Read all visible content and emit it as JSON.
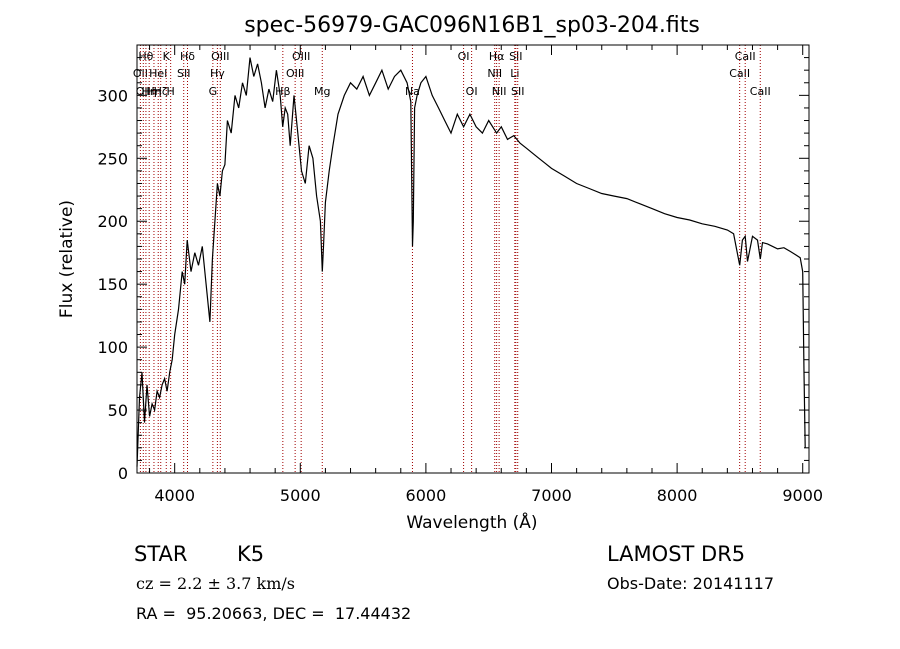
{
  "chart_data": {
    "type": "line",
    "title": "spec-56979-GAC096N16B1_sp03-204.fits",
    "xlabel": "Wavelength (Å)",
    "ylabel": "Flux (relative)",
    "xlim": [
      3700,
      9050
    ],
    "ylim": [
      0,
      340
    ],
    "x_ticks": [
      4000,
      5000,
      6000,
      7000,
      8000,
      9000
    ],
    "y_ticks": [
      0,
      50,
      100,
      150,
      200,
      250,
      300
    ],
    "grid": false,
    "line_color": "#000000",
    "marker_color": "#a00000",
    "series": [
      {
        "x": [
          3700,
          3720,
          3740,
          3760,
          3780,
          3800,
          3820,
          3840,
          3860,
          3880,
          3900,
          3920,
          3940,
          3960,
          3980,
          4000,
          4030,
          4060,
          4080,
          4100,
          4130,
          4160,
          4190,
          4220,
          4250,
          4280,
          4300,
          4320,
          4340,
          4360,
          4380,
          4400,
          4420,
          4450,
          4480,
          4510,
          4540,
          4570,
          4600,
          4630,
          4660,
          4690,
          4720,
          4750,
          4780,
          4810,
          4840,
          4860,
          4880,
          4900,
          4920,
          4950,
          4980,
          5010,
          5040,
          5070,
          5100,
          5130,
          5160,
          5175,
          5185,
          5200,
          5230,
          5260,
          5300,
          5350,
          5400,
          5450,
          5500,
          5550,
          5600,
          5650,
          5700,
          5750,
          5800,
          5850,
          5880,
          5893,
          5900,
          5910,
          5930,
          5960,
          6000,
          6050,
          6100,
          6150,
          6200,
          6250,
          6300,
          6350,
          6400,
          6450,
          6500,
          6563,
          6600,
          6650,
          6700,
          6750,
          6800,
          6850,
          6900,
          6950,
          7000,
          7100,
          7200,
          7300,
          7400,
          7500,
          7600,
          7700,
          7800,
          7900,
          8000,
          8100,
          8200,
          8300,
          8400,
          8450,
          8498,
          8520,
          8542,
          8560,
          8600,
          8640,
          8662,
          8680,
          8720,
          8760,
          8800,
          8850,
          8900,
          8950,
          8980,
          9000,
          9010,
          9020
        ],
        "y": [
          5,
          60,
          80,
          40,
          70,
          45,
          55,
          50,
          65,
          60,
          70,
          75,
          65,
          80,
          90,
          110,
          130,
          160,
          150,
          185,
          160,
          175,
          165,
          180,
          150,
          120,
          170,
          200,
          230,
          220,
          240,
          245,
          280,
          270,
          300,
          290,
          310,
          300,
          330,
          315,
          325,
          310,
          290,
          305,
          295,
          320,
          300,
          275,
          290,
          285,
          260,
          300,
          270,
          240,
          230,
          260,
          250,
          220,
          200,
          160,
          180,
          215,
          240,
          260,
          285,
          300,
          310,
          305,
          315,
          300,
          310,
          320,
          305,
          315,
          320,
          310,
          295,
          180,
          200,
          290,
          300,
          310,
          315,
          300,
          290,
          280,
          270,
          285,
          275,
          285,
          275,
          270,
          280,
          270,
          275,
          265,
          268,
          262,
          258,
          254,
          250,
          246,
          242,
          236,
          230,
          226,
          222,
          220,
          218,
          214,
          210,
          206,
          203,
          201,
          198,
          196,
          193,
          190,
          165,
          185,
          188,
          168,
          188,
          185,
          170,
          183,
          182,
          180,
          178,
          179,
          176,
          173,
          171,
          160,
          80,
          20
        ]
      }
    ],
    "line_markers": [
      {
        "wl": 3727,
        "label": "OII",
        "row": 2
      },
      {
        "wl": 3750,
        "label": "OII",
        "row": 3
      },
      {
        "wl": 3771,
        "label": "Hθ",
        "row": 1
      },
      {
        "wl": 3797,
        "label": "Hη",
        "row": 3
      },
      {
        "wl": 3835,
        "label": "Hη",
        "row": 3
      },
      {
        "wl": 3869,
        "label": "HeI",
        "row": 2
      },
      {
        "wl": 3889,
        "label": "Hζ",
        "row": 3
      },
      {
        "wl": 3933,
        "label": "K",
        "row": 1
      },
      {
        "wl": 3968,
        "label": "H",
        "row": 3
      },
      {
        "wl": 4072,
        "label": "SII",
        "row": 2
      },
      {
        "wl": 4102,
        "label": "Hδ",
        "row": 1
      },
      {
        "wl": 4304,
        "label": "G",
        "row": 3
      },
      {
        "wl": 4340,
        "label": "Hγ",
        "row": 2
      },
      {
        "wl": 4363,
        "label": "OIII",
        "row": 1
      },
      {
        "wl": 4861,
        "label": "Hβ",
        "row": 3
      },
      {
        "wl": 4959,
        "label": "OIII",
        "row": 2
      },
      {
        "wl": 5007,
        "label": "OIII",
        "row": 1
      },
      {
        "wl": 5175,
        "label": "Mg",
        "row": 3
      },
      {
        "wl": 5893,
        "label": "Na",
        "row": 3
      },
      {
        "wl": 6300,
        "label": "OI",
        "row": 1
      },
      {
        "wl": 6364,
        "label": "OI",
        "row": 3
      },
      {
        "wl": 6548,
        "label": "NII",
        "row": 2
      },
      {
        "wl": 6563,
        "label": "Hα",
        "row": 1
      },
      {
        "wl": 6583,
        "label": "NII",
        "row": 3
      },
      {
        "wl": 6708,
        "label": "Li",
        "row": 2
      },
      {
        "wl": 6716,
        "label": "SII",
        "row": 1
      },
      {
        "wl": 6731,
        "label": "SII",
        "row": 3
      },
      {
        "wl": 8498,
        "label": "CaII",
        "row": 2
      },
      {
        "wl": 8542,
        "label": "CaII",
        "row": 1
      },
      {
        "wl": 8662,
        "label": "CaII",
        "row": 3
      }
    ]
  },
  "info": {
    "class_label": "STAR",
    "subclass": "K5",
    "survey": "LAMOST DR5",
    "redshift": "cz = 2.2 ± 3.7 km/s",
    "obs_date": "Obs-Date: 20141117",
    "coords": "RA =  95.20663, DEC =  17.44432"
  }
}
